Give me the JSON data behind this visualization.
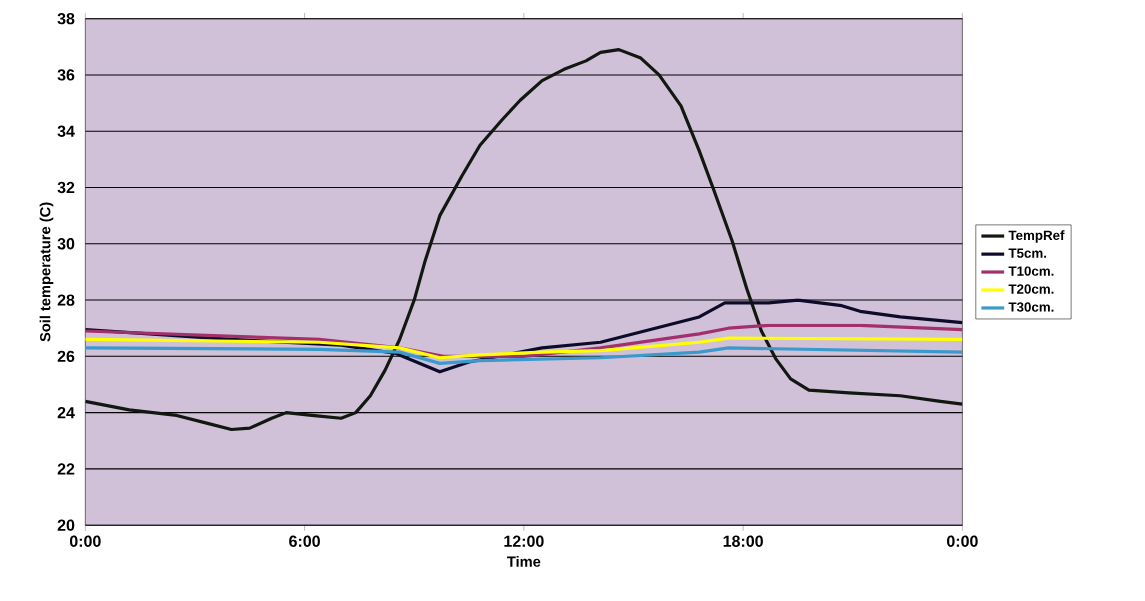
{
  "chart_data": {
    "type": "line",
    "xlabel": "Time",
    "ylabel": "Soil temperature (C)",
    "xlim": [
      0,
      24
    ],
    "ylim": [
      20,
      38
    ],
    "xticks": [
      {
        "value": 0,
        "label": "0:00"
      },
      {
        "value": 6,
        "label": "6:00"
      },
      {
        "value": 12,
        "label": "12:00"
      },
      {
        "value": 18,
        "label": "18:00"
      },
      {
        "value": 24,
        "label": "0:00"
      }
    ],
    "yticks": [
      20,
      22,
      24,
      26,
      28,
      30,
      32,
      34,
      36,
      38
    ],
    "grid": "y",
    "legend": "right",
    "series": [
      {
        "name": "TempRef",
        "color": "#101810",
        "x": [
          0,
          1.2,
          2.5,
          3.4,
          4.0,
          4.5,
          5.1,
          5.5,
          6.2,
          7.0,
          7.4,
          7.8,
          8.2,
          8.6,
          9.0,
          9.3,
          9.7,
          10.3,
          10.8,
          11.4,
          11.9,
          12.5,
          13.1,
          13.7,
          14.1,
          14.6,
          15.2,
          15.7,
          16.3,
          16.8,
          17.2,
          17.7,
          18.1,
          18.5,
          18.9,
          19.3,
          19.8,
          20.9,
          22.3,
          23.4,
          24
        ],
        "values": [
          24.4,
          24.1,
          23.9,
          23.6,
          23.4,
          23.45,
          23.8,
          24.0,
          23.9,
          23.8,
          24.0,
          24.6,
          25.5,
          26.6,
          28.0,
          29.4,
          31.0,
          32.4,
          33.5,
          34.4,
          35.1,
          35.8,
          36.2,
          36.5,
          36.8,
          36.9,
          36.6,
          36.0,
          34.9,
          33.3,
          31.9,
          30.1,
          28.4,
          26.9,
          25.9,
          25.2,
          24.8,
          24.7,
          24.6,
          24.4,
          24.3
        ]
      },
      {
        "name": "T5cm.",
        "color": "#0c0c2a",
        "x": [
          0,
          4.0,
          7.0,
          8.5,
          9.7,
          10.5,
          12.5,
          14.1,
          16.8,
          17.5,
          18.7,
          19.5,
          20.7,
          21.2,
          22.3,
          24
        ],
        "values": [
          26.95,
          26.6,
          26.4,
          26.1,
          25.45,
          25.8,
          26.3,
          26.5,
          27.4,
          27.9,
          27.9,
          28.0,
          27.8,
          27.6,
          27.4,
          27.2
        ]
      },
      {
        "name": "T10cm.",
        "color": "#a3306c",
        "x": [
          0,
          6.4,
          8.6,
          9.8,
          12.0,
          14.1,
          16.8,
          17.6,
          18.7,
          21.2,
          24
        ],
        "values": [
          26.9,
          26.6,
          26.3,
          26.0,
          26.0,
          26.3,
          26.8,
          27.0,
          27.1,
          27.1,
          26.95
        ]
      },
      {
        "name": "T20cm.",
        "color": "#ffff00",
        "x": [
          0,
          6.4,
          8.6,
          9.7,
          10.8,
          12.5,
          14.1,
          16.8,
          17.6,
          24
        ],
        "values": [
          26.6,
          26.5,
          26.3,
          25.95,
          26.05,
          26.15,
          26.2,
          26.5,
          26.65,
          26.6
        ]
      },
      {
        "name": "T30cm.",
        "color": "#3a9acb",
        "x": [
          0,
          6.4,
          8.6,
          9.7,
          10.8,
          14.1,
          16.8,
          17.6,
          24
        ],
        "values": [
          26.3,
          26.25,
          26.15,
          25.75,
          25.85,
          25.95,
          26.15,
          26.3,
          26.15
        ]
      }
    ]
  }
}
